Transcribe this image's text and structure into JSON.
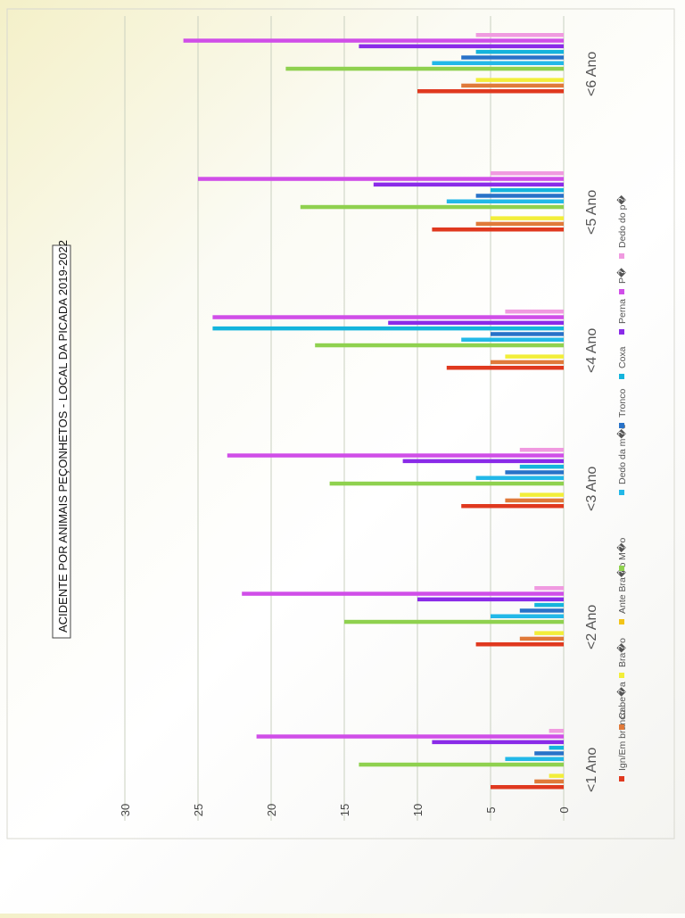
{
  "chart_data": {
    "type": "bar",
    "orientation": "horizontal (image rotated 90°, values grow upward on screen)",
    "title": "ACIDENTE POR ANIMAIS PEÇONHETOS - LOCAL DA PICADA 2019-2022",
    "xlabel": "",
    "ylabel": "",
    "ylim": [
      0,
      30
    ],
    "yticks": [
      0,
      5,
      10,
      15,
      20,
      25,
      30
    ],
    "grid": true,
    "legend_position": "bottom",
    "categories": [
      "<1 Ano",
      "<2 Ano",
      "<3 Ano",
      "<4 Ano",
      "<5 Ano",
      "<6 Ano"
    ],
    "series": [
      {
        "name": "Ign/Em branco",
        "color": "#e0391f",
        "values": [
          5,
          6,
          7,
          8,
          9,
          10
        ]
      },
      {
        "name": "Cabe�a",
        "color": "#e07a3a",
        "values": [
          2,
          3,
          4,
          5,
          6,
          7
        ]
      },
      {
        "name": "Bra�o",
        "color": "#f2ee3a",
        "values": [
          1,
          2,
          3,
          4,
          5,
          6
        ]
      },
      {
        "name": "Ante Bra�o",
        "color": "#f2c418",
        "values": [
          0,
          0,
          0,
          0,
          0,
          0
        ]
      },
      {
        "name": "M�o",
        "color": "#8fd14f",
        "values": [
          14,
          15,
          16,
          17,
          18,
          19
        ]
      },
      {
        "name": "Dedo da m�o",
        "color": "#22b8e8",
        "values": [
          4,
          5,
          6,
          7,
          8,
          9
        ]
      },
      {
        "name": "Tronco",
        "color": "#2872c8",
        "values": [
          2,
          3,
          4,
          5,
          6,
          7
        ]
      },
      {
        "name": "Coxa",
        "color": "#14b4dc",
        "values": [
          1,
          2,
          3,
          24,
          5,
          6
        ]
      },
      {
        "name": "Perna",
        "color": "#8a2be8",
        "values": [
          9,
          10,
          11,
          12,
          13,
          14
        ]
      },
      {
        "name": "P�",
        "color": "#d04ee8",
        "values": [
          21,
          22,
          23,
          24,
          25,
          26
        ]
      },
      {
        "name": "Dedo do p�",
        "color": "#f09ae0",
        "values": [
          1,
          2,
          3,
          4,
          5,
          6
        ]
      }
    ]
  }
}
